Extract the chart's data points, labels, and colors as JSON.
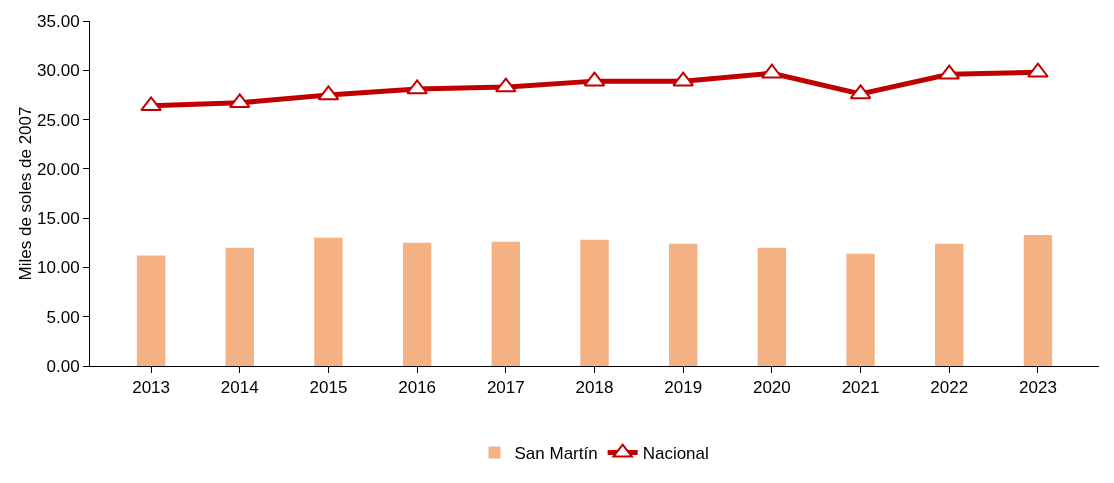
{
  "chart_data": {
    "type": "bar",
    "ylabel": "Miles de soles de 2007",
    "categories": [
      "2013",
      "2014",
      "2015",
      "2016",
      "2017",
      "2018",
      "2019",
      "2020",
      "2021",
      "2022",
      "2023"
    ],
    "series": [
      {
        "name": "San Martín",
        "color": "#f4b183",
        "values": [
          11.2,
          12.0,
          13.0,
          12.5,
          12.6,
          12.8,
          12.4,
          12.0,
          11.4,
          12.4,
          13.3
        ]
      },
      {
        "name": "Nacional",
        "type": "line",
        "color": "#c00000",
        "marker": "triangle",
        "values": [
          26.4,
          26.7,
          27.5,
          28.1,
          28.3,
          28.9,
          28.9,
          29.7,
          27.6,
          29.6,
          29.8
        ]
      }
    ],
    "ylim": [
      0,
      35
    ],
    "yticks": [
      {
        "value": 0,
        "label": "0.00"
      },
      {
        "value": 5,
        "label": "5.00"
      },
      {
        "value": 10,
        "label": "10.00"
      },
      {
        "value": 15,
        "label": "15.00"
      },
      {
        "value": 20,
        "label": "20.00"
      },
      {
        "value": 25,
        "label": "25.00"
      },
      {
        "value": 30,
        "label": "30.00"
      },
      {
        "value": 35,
        "label": "35.00"
      }
    ],
    "grid": false,
    "legend": "bottom"
  }
}
